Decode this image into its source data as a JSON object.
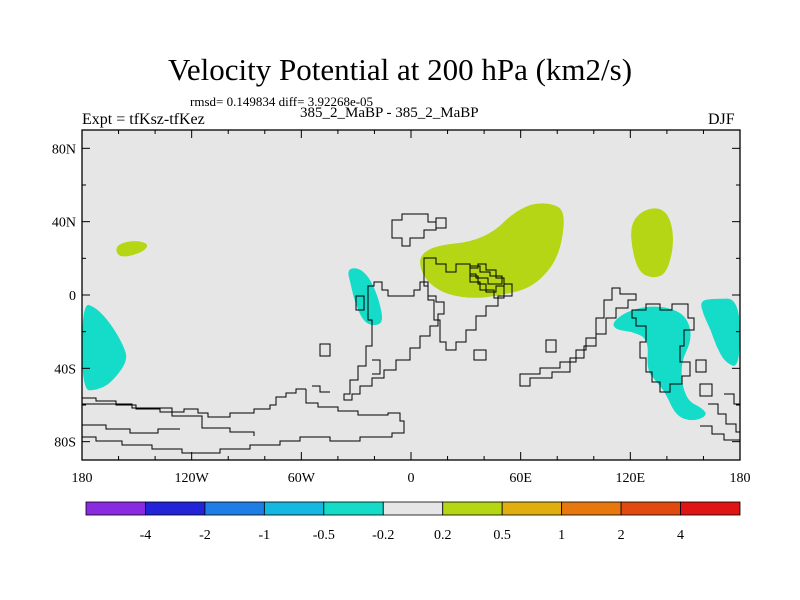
{
  "header": {
    "title": "Velocity Potential at 200 hPa (km2/s)",
    "stats": "rmsd= 0.149834 diff= 3.92268e-05",
    "experiment": "Expt = tfKsz-tfKez",
    "case": "385_2_MaBP - 385_2_MaBP",
    "season": "DJF"
  },
  "chart_data": {
    "type": "heatmap",
    "title": "Velocity Potential at 200 hPa (km2/s)",
    "projection": "cylindrical equidistant (lon/lat)",
    "xlim": [
      -180,
      180
    ],
    "ylim": [
      -90,
      90
    ],
    "x_ticks": [
      {
        "value": -180,
        "label": "180"
      },
      {
        "value": -120,
        "label": "120W"
      },
      {
        "value": -60,
        "label": "60W"
      },
      {
        "value": 0,
        "label": "0"
      },
      {
        "value": 60,
        "label": "60E"
      },
      {
        "value": 120,
        "label": "120E"
      },
      {
        "value": 180,
        "label": "180"
      }
    ],
    "y_ticks": [
      {
        "value": 80,
        "label": "80N"
      },
      {
        "value": 40,
        "label": "40N"
      },
      {
        "value": 0,
        "label": "0"
      },
      {
        "value": -40,
        "label": "40S"
      },
      {
        "value": -80,
        "label": "80S"
      }
    ],
    "contour_levels": [
      -4,
      -2,
      -1,
      -0.5,
      -0.2,
      0.2,
      0.5,
      1,
      2,
      4
    ],
    "colorbar_labels": [
      "-4",
      "-2",
      "-1",
      "-0.5",
      "-0.2",
      "0.2",
      "0.5",
      "1",
      "2",
      "4"
    ],
    "colorbar_colors": [
      "#8a2be2",
      "#2323d7",
      "#1f7ee6",
      "#14b8e0",
      "#14dcc8",
      "#e6e6e6",
      "#b4d614",
      "#e0ae0e",
      "#e6780e",
      "#e04a0e",
      "#e01414"
    ],
    "background_color": "#e6e6e6",
    "regions": [
      {
        "name": "positive-anomaly-north-pacific",
        "value_range": "0.2 to 0.5",
        "color": "#b4d614",
        "outline": [
          [
            -162,
            27
          ],
          [
            -152,
            30
          ],
          [
            -143,
            28
          ],
          [
            -147,
            23
          ],
          [
            -160,
            20
          ]
        ]
      },
      {
        "name": "positive-anomaly-asia-africa",
        "value_range": "0.2 to 0.5",
        "color": "#b4d614",
        "outline": [
          [
            5,
            22
          ],
          [
            14,
            27
          ],
          [
            33,
            29
          ],
          [
            46,
            35
          ],
          [
            55,
            44
          ],
          [
            66,
            50
          ],
          [
            77,
            50
          ],
          [
            84,
            46
          ],
          [
            83,
            30
          ],
          [
            78,
            16
          ],
          [
            66,
            4
          ],
          [
            50,
            0
          ],
          [
            35,
            -2
          ],
          [
            20,
            0
          ],
          [
            10,
            6
          ],
          [
            5,
            14
          ]
        ]
      },
      {
        "name": "positive-anomaly-north-pacific-east",
        "value_range": "0.2 to 0.5",
        "color": "#b4d614",
        "outline": [
          [
            120,
            38
          ],
          [
            126,
            46
          ],
          [
            136,
            48
          ],
          [
            142,
            42
          ],
          [
            144,
            28
          ],
          [
            140,
            12
          ],
          [
            133,
            9
          ],
          [
            125,
            12
          ],
          [
            121,
            24
          ]
        ]
      },
      {
        "name": "negative-anomaly-east-pacific",
        "value_range": "-0.5 to -0.2",
        "color": "#14dcc8",
        "outline": [
          [
            -180,
            -4
          ],
          [
            -172,
            -7
          ],
          [
            -164,
            -16
          ],
          [
            -157,
            -28
          ],
          [
            -155,
            -36
          ],
          [
            -164,
            -48
          ],
          [
            -172,
            -52
          ],
          [
            -180,
            -52
          ]
        ]
      },
      {
        "name": "negative-anomaly-south-atlantic",
        "value_range": "-0.5 to -0.2",
        "color": "#14dcc8",
        "outline": [
          [
            -35,
            14
          ],
          [
            -29,
            15
          ],
          [
            -23,
            10
          ],
          [
            -18,
            -1
          ],
          [
            -15,
            -14
          ],
          [
            -19,
            -17
          ],
          [
            -26,
            -15
          ],
          [
            -31,
            -3
          ],
          [
            -33,
            6
          ]
        ]
      },
      {
        "name": "negative-anomaly-maritime-continent",
        "value_range": "-0.5 to -0.2",
        "color": "#14dcc8",
        "outline": [
          [
            110,
            -15
          ],
          [
            118,
            -9
          ],
          [
            130,
            -6
          ],
          [
            142,
            -7
          ],
          [
            151,
            -12
          ],
          [
            154,
            -24
          ],
          [
            147,
            -38
          ],
          [
            150,
            -57
          ],
          [
            160,
            -62
          ],
          [
            162,
            -66
          ],
          [
            154,
            -69
          ],
          [
            145,
            -66
          ],
          [
            139,
            -53
          ],
          [
            134,
            -47
          ],
          [
            129,
            -41
          ],
          [
            130,
            -24
          ],
          [
            121,
            -20
          ],
          [
            112,
            -19
          ]
        ]
      },
      {
        "name": "negative-anomaly-south-pacific-east",
        "value_range": "-0.5 to -0.2",
        "color": "#14dcc8",
        "outline": [
          [
            158,
            -3
          ],
          [
            166,
            -2
          ],
          [
            180,
            -2
          ],
          [
            180,
            -40
          ],
          [
            172,
            -37
          ],
          [
            167,
            -28
          ],
          [
            164,
            -19
          ],
          [
            160,
            -11
          ]
        ]
      }
    ]
  }
}
